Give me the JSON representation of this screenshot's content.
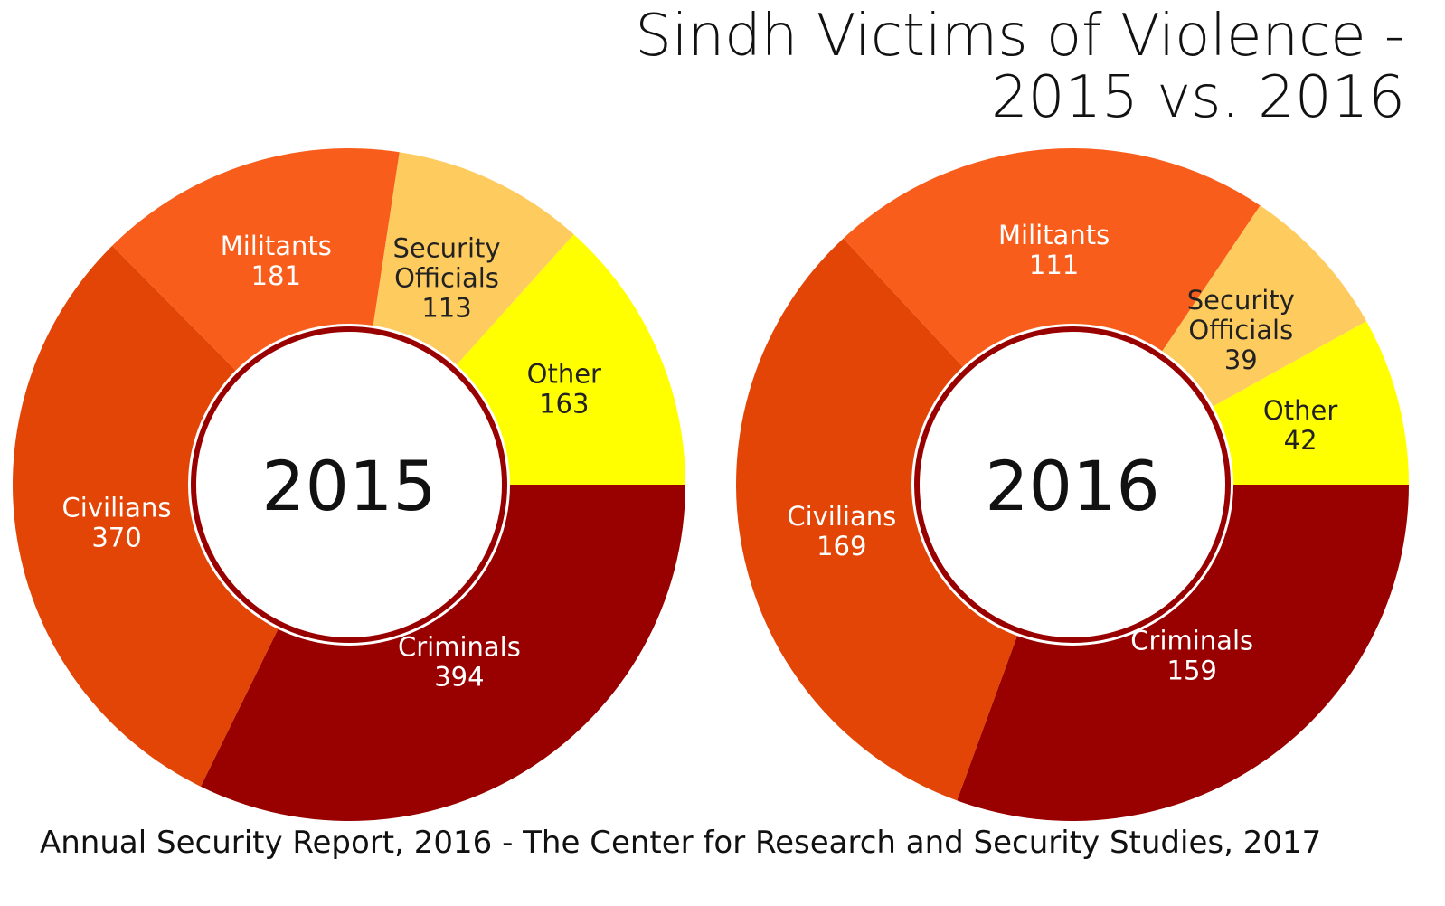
{
  "title_line1": "Sindh Victims of Violence -",
  "title_line2": "2015 vs. 2016",
  "source": "Annual Security Report, 2016 - The Center for Research and Security Studies, 2017",
  "chart_data": [
    {
      "type": "pie",
      "center_label": "2015",
      "title": "Sindh Victims of Violence - 2015 vs. 2016",
      "slices": [
        {
          "label": "Criminals",
          "value": 394,
          "color": "#990000",
          "text_color": "#ffffff"
        },
        {
          "label": "Civilians",
          "value": 370,
          "color": "#E24506",
          "text_color": "#ffffff"
        },
        {
          "label": "Militants",
          "value": 181,
          "color": "#F95D1C",
          "text_color": "#ffffff"
        },
        {
          "label": "Security Officials",
          "value": 113,
          "color": "#FECB5E",
          "text_color": "#222222"
        },
        {
          "label": "Other",
          "value": 163,
          "color": "#FFFF00",
          "text_color": "#222222"
        }
      ]
    },
    {
      "type": "pie",
      "center_label": "2016",
      "title": "Sindh Victims of Violence - 2015 vs. 2016",
      "slices": [
        {
          "label": "Criminals",
          "value": 159,
          "color": "#990000",
          "text_color": "#ffffff"
        },
        {
          "label": "Civilians",
          "value": 169,
          "color": "#E24506",
          "text_color": "#ffffff"
        },
        {
          "label": "Militants",
          "value": 111,
          "color": "#F95D1C",
          "text_color": "#ffffff"
        },
        {
          "label": "Security Officials",
          "value": 39,
          "color": "#FECB5E",
          "text_color": "#222222"
        },
        {
          "label": "Other",
          "value": 42,
          "color": "#FFFF00",
          "text_color": "#222222"
        }
      ]
    }
  ],
  "colors": {
    "ring": "#990000",
    "background": "#ffffff"
  }
}
